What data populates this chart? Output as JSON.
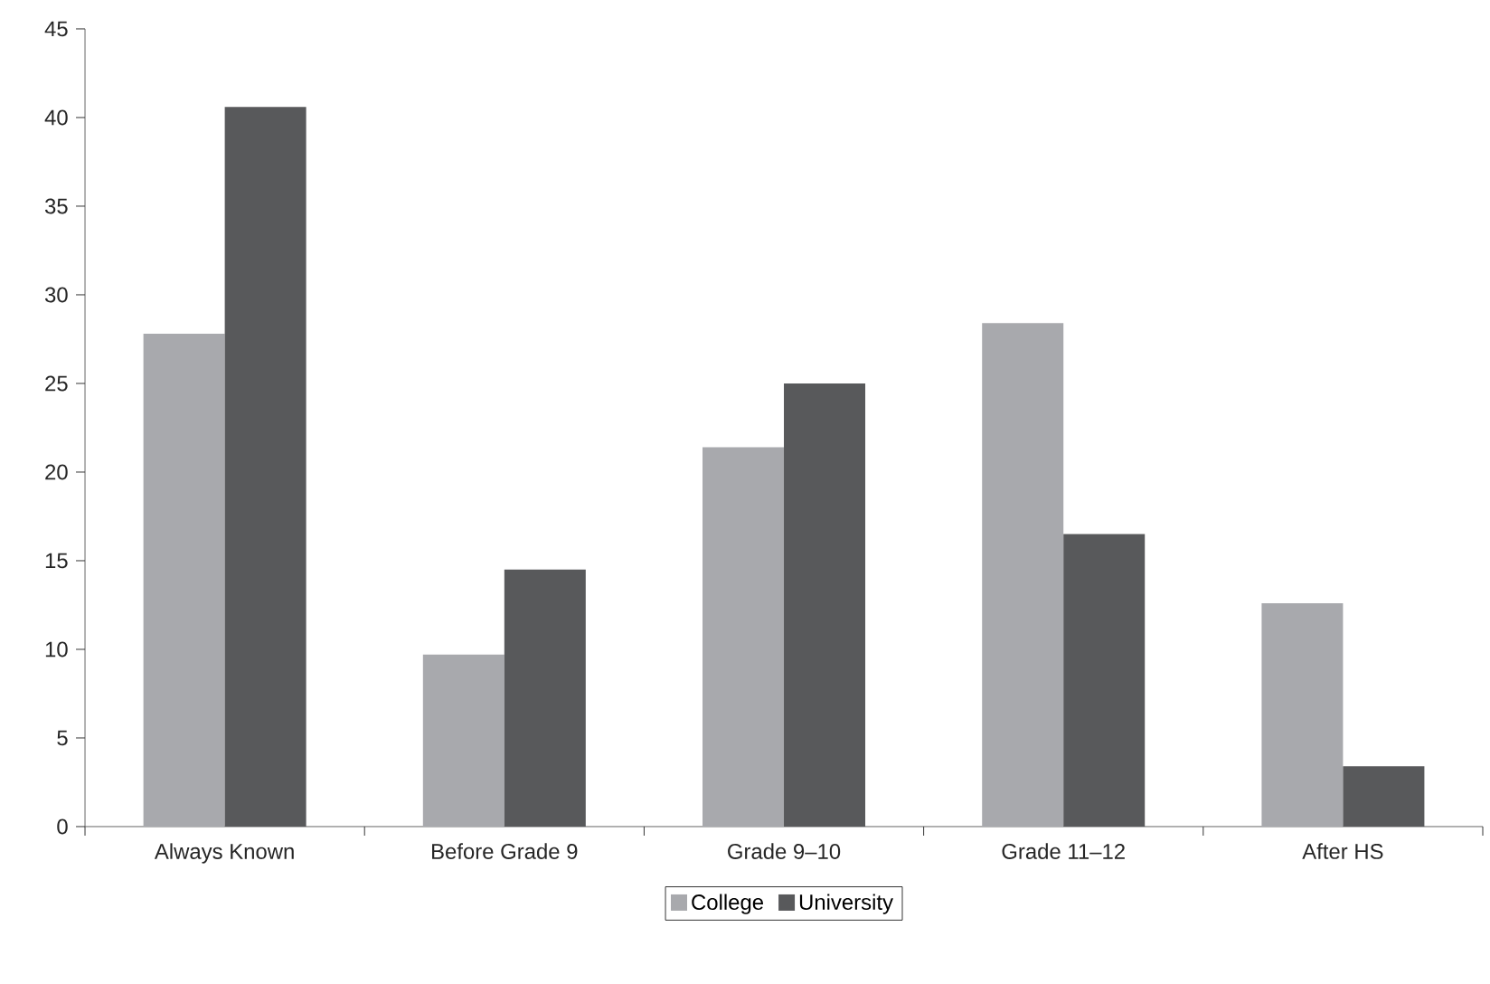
{
  "chart_data": {
    "type": "bar",
    "categories": [
      "Always Known",
      "Before Grade 9",
      "Grade 9–10",
      "Grade 11–12",
      "After HS"
    ],
    "series": [
      {
        "name": "College",
        "color": "#a8a9ad",
        "values": [
          27.8,
          9.7,
          21.4,
          28.4,
          12.6
        ]
      },
      {
        "name": "University",
        "color": "#58595b",
        "values": [
          40.6,
          14.5,
          25.0,
          16.5,
          3.4
        ]
      }
    ],
    "ylim": [
      0,
      45
    ],
    "yticks": [
      0,
      5,
      10,
      15,
      20,
      25,
      30,
      35,
      40,
      45
    ],
    "grid": false,
    "legend": "bottom"
  }
}
